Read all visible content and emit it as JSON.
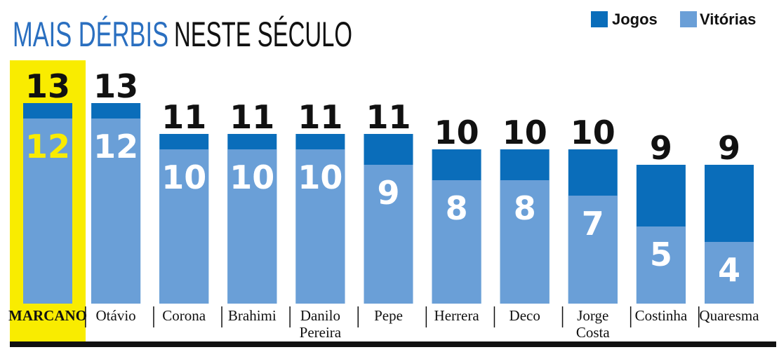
{
  "title": {
    "part1": "MAIS DÉRBIS",
    "part2": "NESTE SÉCULO"
  },
  "legend": [
    {
      "label": "Jogos",
      "color": "#0a6dba"
    },
    {
      "label": "Vitórias",
      "color": "#6a9fd7"
    }
  ],
  "colors": {
    "highlight_bg": "#f9ec00",
    "highlight_text": "#f9ec00",
    "baseline": "#111111"
  },
  "chart_data": {
    "type": "bar",
    "categories": [
      [
        "MARCANO"
      ],
      [
        "Otávio"
      ],
      [
        "Corona"
      ],
      [
        "Brahimi"
      ],
      [
        "Danilo",
        "Pereira"
      ],
      [
        "Pepe"
      ],
      [
        "Herrera"
      ],
      [
        "Deco"
      ],
      [
        "Jorge",
        "Costa"
      ],
      [
        "Costinha"
      ],
      [
        "Quaresma"
      ]
    ],
    "highlighted_index": 0,
    "series": [
      {
        "name": "Jogos",
        "values": [
          13,
          13,
          11,
          11,
          11,
          11,
          10,
          10,
          10,
          9,
          9
        ]
      },
      {
        "name": "Vitórias",
        "values": [
          12,
          12,
          10,
          10,
          10,
          9,
          8,
          8,
          7,
          5,
          4
        ]
      }
    ],
    "ylim": [
      0,
      13
    ]
  }
}
